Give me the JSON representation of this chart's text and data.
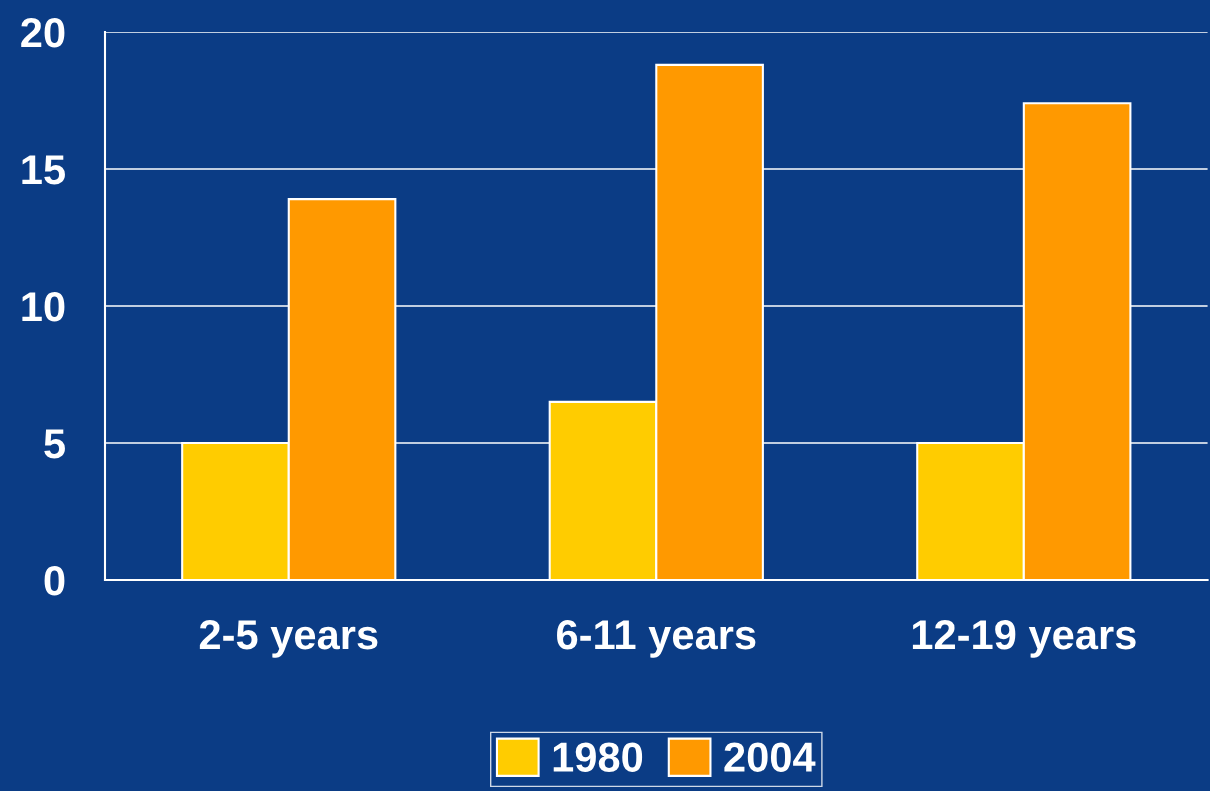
{
  "chart_data": {
    "type": "bar",
    "categories": [
      "2-5 years",
      "6-11 years",
      "12-19 years"
    ],
    "series": [
      {
        "name": "1980",
        "color": "#ffcc00",
        "values": [
          5,
          6.5,
          5
        ]
      },
      {
        "name": "2004",
        "color": "#ff9900",
        "values": [
          13.9,
          18.8,
          17.4
        ]
      }
    ],
    "ylim": [
      0,
      20
    ],
    "yticks": [
      0,
      5,
      10,
      15,
      20
    ],
    "grid": "y",
    "legend": "bottom"
  }
}
